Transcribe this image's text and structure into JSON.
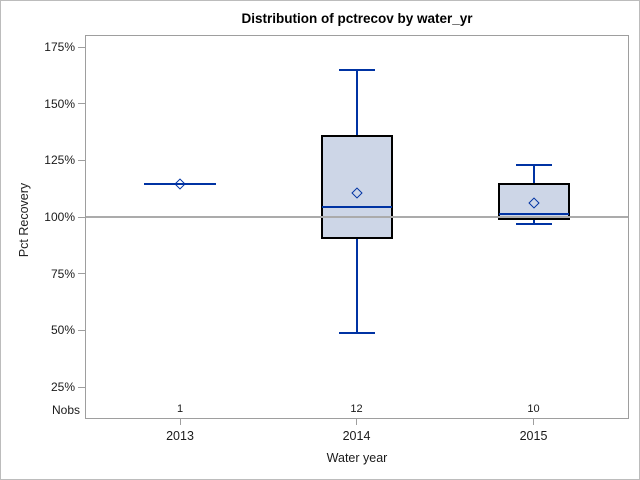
{
  "title": "Distribution of pctrecov by water_yr",
  "y_axis": {
    "label": "Pct Recovery",
    "tick_labels": [
      "175%",
      "150%",
      "125%",
      "100%",
      "75%",
      "50%",
      "25%"
    ],
    "tick_values": [
      175,
      150,
      125,
      100,
      75,
      50,
      25
    ]
  },
  "x_axis": {
    "label": "Water year",
    "tick_labels": [
      "2013",
      "2014",
      "2015"
    ]
  },
  "nobs_row": {
    "label": "Nobs",
    "values": [
      "1",
      "12",
      "10"
    ]
  },
  "chart_data": {
    "type": "box",
    "title": "Distribution of pctrecov by water_yr",
    "xlabel": "Water year",
    "ylabel": "Pct Recovery",
    "categories": [
      "2013",
      "2014",
      "2015"
    ],
    "ytick_values": [
      25,
      50,
      75,
      100,
      125,
      150,
      175
    ],
    "ylim": [
      10,
      180
    ],
    "reference_line": 100,
    "legend_position": "none",
    "grid": false,
    "groups": [
      {
        "category": "2013",
        "nobs": 1,
        "whisker_low": 114.6,
        "q1": 114.6,
        "median": 114.6,
        "q3": 114.6,
        "whisker_high": 114.6,
        "mean": 114.6
      },
      {
        "category": "2014",
        "nobs": 12,
        "whisker_low": 49,
        "q1": 90.5,
        "median": 104.5,
        "q3": 136,
        "whisker_high": 165,
        "mean": 110.5
      },
      {
        "category": "2015",
        "nobs": 10,
        "whisker_low": 97,
        "q1": 98.5,
        "median": 101.5,
        "q3": 115,
        "whisker_high": 123,
        "mean": 106
      }
    ]
  },
  "colors": {
    "box_fill": "#cdd6e7",
    "box_border": "#000000",
    "whisker": "#0033a3",
    "median": "#0033a3",
    "mean_marker": "#0033a3",
    "reference_line": "#ababab",
    "axis_frame": "#9e9e9e",
    "text": "#1a1a1a"
  }
}
